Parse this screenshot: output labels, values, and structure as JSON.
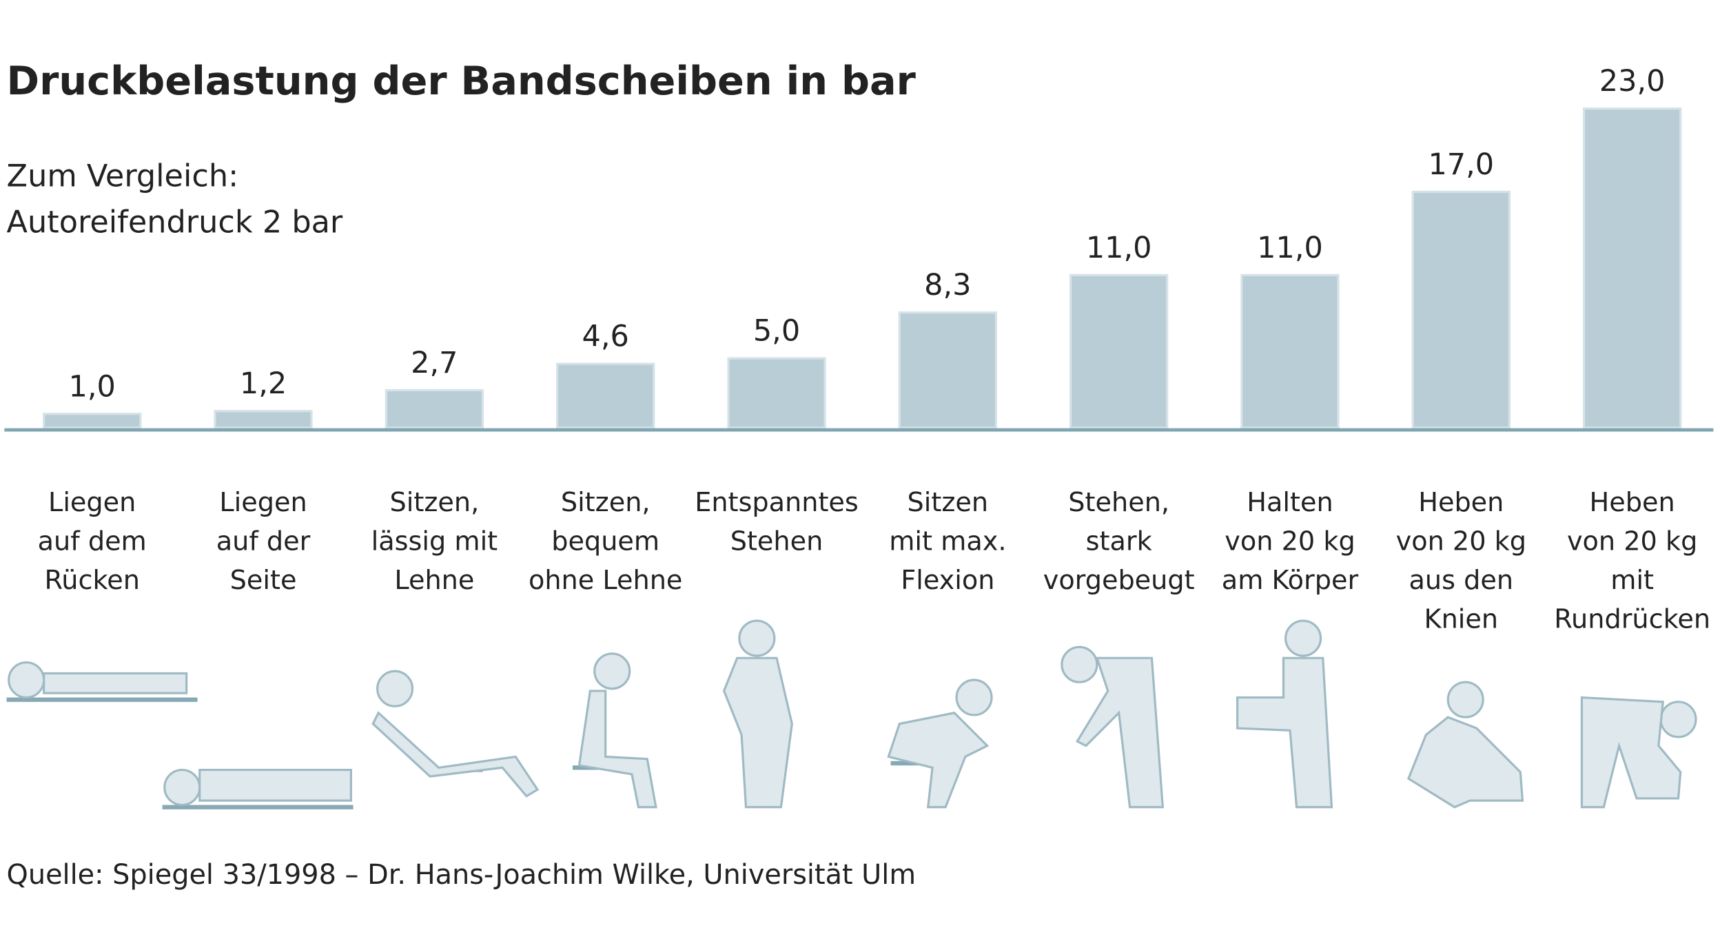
{
  "chart_data": {
    "type": "bar",
    "title": "Druckbelastung der Bandscheiben in bar",
    "subtitle": [
      "Zum Vergleich:",
      "Autoreifendruck 2 bar"
    ],
    "categories": [
      [
        "Liegen",
        "auf dem",
        "Rücken"
      ],
      [
        "Liegen",
        "auf der",
        "Seite"
      ],
      [
        "Sitzen,",
        "lässig mit",
        "Lehne"
      ],
      [
        "Sitzen,",
        "bequem",
        "ohne Lehne"
      ],
      [
        "Entspanntes",
        "Stehen"
      ],
      [
        "Sitzen",
        "mit max.",
        "Flexion"
      ],
      [
        "Stehen,",
        "stark",
        "vorgebeugt"
      ],
      [
        "Halten",
        "von 20 kg",
        "am Körper"
      ],
      [
        "Heben",
        "von 20 kg",
        "aus den",
        "Knien"
      ],
      [
        "Heben",
        "von 20 kg",
        "mit",
        "Rundrücken"
      ]
    ],
    "values": [
      1.0,
      1.2,
      2.7,
      4.6,
      5.0,
      8.3,
      11.0,
      11.0,
      17.0,
      23.0
    ],
    "value_labels": [
      "1,0",
      "1,2",
      "2,7",
      "4,6",
      "5,0",
      "8,3",
      "11,0",
      "11,0",
      "17,0",
      "23,0"
    ],
    "color": "#b9cdd6",
    "ylim": [
      0,
      23
    ],
    "source": "Quelle: Spiegel 33/1998 – Dr. Hans-Joachim Wilke, Universität Ulm"
  }
}
